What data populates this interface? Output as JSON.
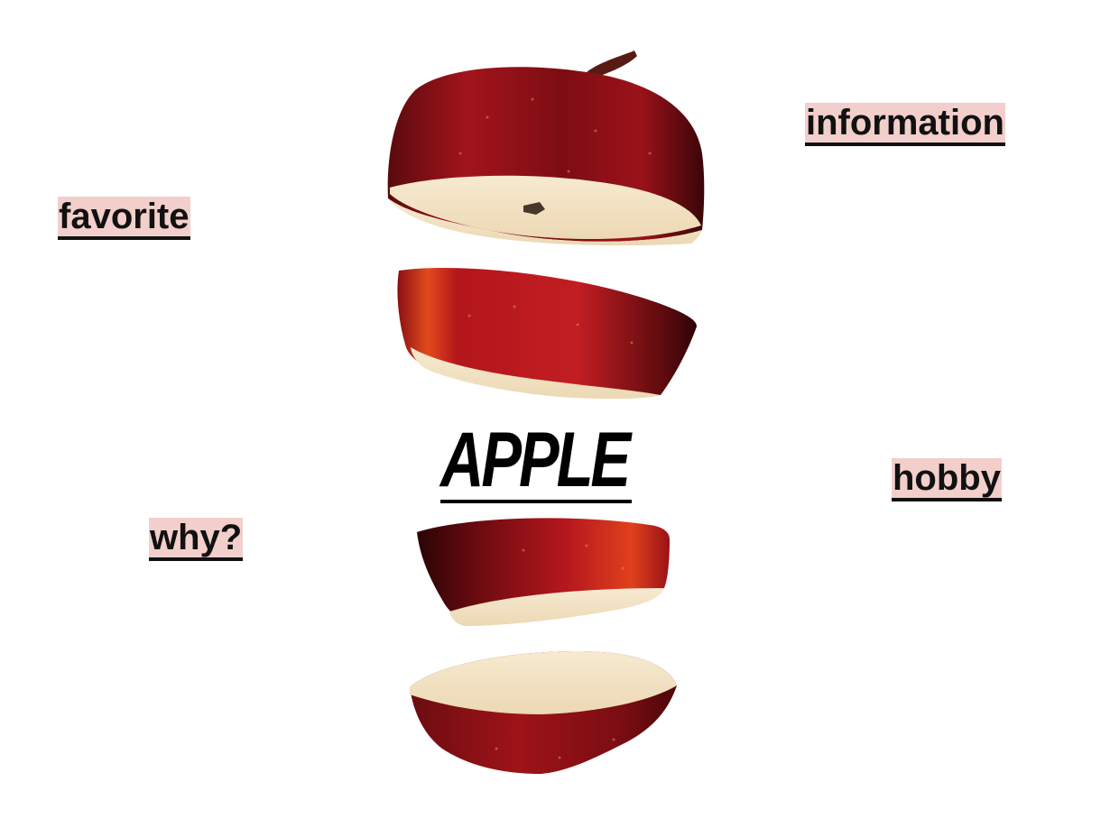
{
  "title": "APPLE",
  "keywords": {
    "information": "information",
    "favorite": "favorite",
    "why": "why?",
    "hobby": "hobby"
  },
  "colors": {
    "background": "#ffffff",
    "keyword_highlight": "#f2cfcb",
    "text": "#111111",
    "apple_skin": "#8e1117",
    "apple_flesh": "#f5e6c8"
  }
}
